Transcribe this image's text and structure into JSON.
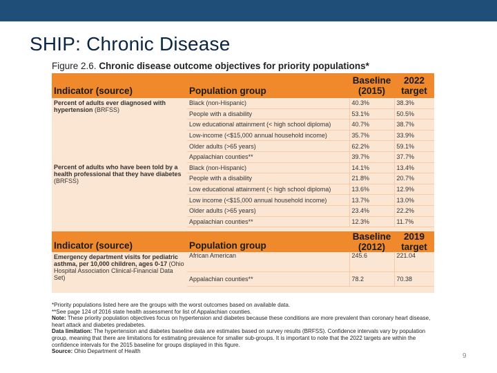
{
  "slide": {
    "title": "SHIP: Chronic Disease",
    "page_number": "9",
    "top_bar_color": "#1f4e79"
  },
  "figure": {
    "caption_label": "Figure 2.6.",
    "caption_title": "Chronic disease outcome objectives for priority populations*",
    "header1": {
      "indicator": "Indicator (source)",
      "population": "Population group",
      "baseline": "Baseline (2015)",
      "target": "2022 target"
    },
    "section1": {
      "indicator_bold": "Percent of adults ever diagnosed with hypertension",
      "indicator_source": "(BRFSS)",
      "rows": [
        {
          "group": "Black (non-Hispanic)",
          "baseline": "40.3%",
          "target": "38.3%"
        },
        {
          "group": "People with a disability",
          "baseline": "53.1%",
          "target": "50.5%"
        },
        {
          "group": "Low educational attainment (< high school diploma)",
          "baseline": "40.7%",
          "target": "38.7%"
        },
        {
          "group": "Low-income (<$15,000 annual household income)",
          "baseline": "35.7%",
          "target": "33.9%"
        },
        {
          "group": "Older adults (>65 years)",
          "baseline": "62.2%",
          "target": "59.1%"
        },
        {
          "group": "Appalachian counties**",
          "baseline": "39.7%",
          "target": "37.7%"
        }
      ]
    },
    "section2": {
      "indicator_bold": "Percent of adults who have been told by a health professional that they have diabetes",
      "indicator_source": "(BRFSS)",
      "rows": [
        {
          "group": "Black (non-Hispanic)",
          "baseline": "14.1%",
          "target": "13.4%"
        },
        {
          "group": "People with a disability",
          "baseline": "21.8%",
          "target": "20.7%"
        },
        {
          "group": "Low educational attainment (< high school diploma)",
          "baseline": "13.6%",
          "target": "12.9%"
        },
        {
          "group": "Low income (<$15,000 annual household income)",
          "baseline": "13.7%",
          "target": "13.0%"
        },
        {
          "group": "Older adults (>65 years)",
          "baseline": "23.4%",
          "target": "22.2%"
        },
        {
          "group": "Appalachian counties**",
          "baseline": "12.3%",
          "target": "11.7%"
        }
      ]
    },
    "header2": {
      "indicator": "Indicator (source)",
      "population": "Population group",
      "baseline": "Baseline (2012)",
      "target": "2019 target"
    },
    "section3": {
      "indicator_bold": "Emergency department visits for pediatric asthma, per 10,000 children, ages 0-17",
      "indicator_source": "(Ohio Hospital Association Clinical-Financial Data Set)",
      "rows": [
        {
          "group": "African American",
          "baseline": "245.6",
          "target": "221.04"
        },
        {
          "group": "Appalachian counties**",
          "baseline": "78.2",
          "target": "70.38"
        }
      ]
    },
    "colors": {
      "header_orange": "#f0892c",
      "body_peach": "#fbe5d3"
    }
  },
  "footnotes": {
    "note1": "*Priority populations listed here are the groups with the worst outcomes based on available data.",
    "note2": "**See page 124 of 2016 state health assessment for list of Appalachian counties.",
    "note3_label": "Note:",
    "note3_text": "These priority population objectives focus on hypertension and diabetes because these conditions are more prevalent than coronary heart disease, heart attack and diabetes predabetes.",
    "note4_label": "Data limitation:",
    "note4_text": "The hypertension and diabetes baseline data are estimates based on survey results (BRFSS). Confidence intervals vary by population group, meaning that there are limitations for estimating prevalence for smaller sub-groups. It is important to note that the 2022 targets are within the confidence intervals for the 2015 baseline for groups displayed in this figure.",
    "source_label": "Source:",
    "source_text": "Ohio Department of Health"
  }
}
